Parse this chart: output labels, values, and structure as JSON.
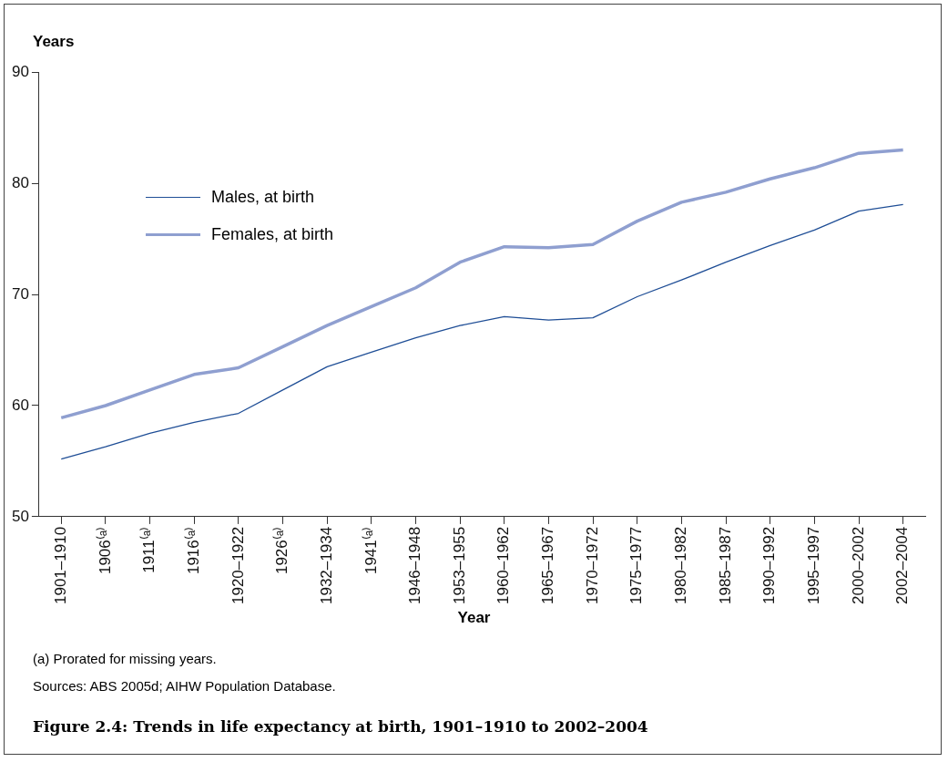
{
  "chart_data": {
    "type": "line",
    "title": "Figure 2.4: Trends in life expectancy at birth, 1901–1910 to 2002–2004",
    "xlabel": "Year",
    "ylabel": "Years",
    "categories": [
      "1901–1910",
      "1906⁽ᵃ⁾",
      "1911⁽ᵃ⁾",
      "1916⁽ᵃ⁾",
      "1920–1922",
      "1926⁽ᵃ⁾",
      "1932–1934",
      "1941⁽ᵃ⁾",
      "1946–1948",
      "1953–1955",
      "1960–1962",
      "1965–1967",
      "1970–1972",
      "1975–1977",
      "1980–1982",
      "1985–1987",
      "1990–1992",
      "1995–1997",
      "2000–2002",
      "2002–2004"
    ],
    "series": [
      {
        "name": "Males, at birth",
        "color": "#1f4e96",
        "values": [
          55.2,
          56.3,
          57.5,
          58.5,
          59.3,
          61.4,
          63.5,
          64.8,
          66.1,
          67.2,
          68.0,
          67.7,
          67.9,
          69.8,
          71.3,
          72.9,
          74.4,
          75.8,
          77.5,
          78.1
        ]
      },
      {
        "name": "Females, at birth",
        "color": "#8f9fd0",
        "values": [
          58.9,
          60.0,
          61.4,
          62.8,
          63.4,
          65.3,
          67.2,
          68.9,
          70.6,
          72.9,
          74.3,
          74.2,
          74.5,
          76.6,
          78.3,
          79.2,
          80.4,
          81.4,
          82.7,
          83.0
        ]
      }
    ],
    "ylim": [
      50,
      90
    ],
    "yticks": [
      50,
      60,
      70,
      80,
      90
    ],
    "grid": false,
    "legend": "top left",
    "marker": "none",
    "line_style": "solid",
    "annotations": [
      "(a)  Prorated for missing years.",
      "Sources: ABS 2005d; AIHW Population Database."
    ]
  }
}
